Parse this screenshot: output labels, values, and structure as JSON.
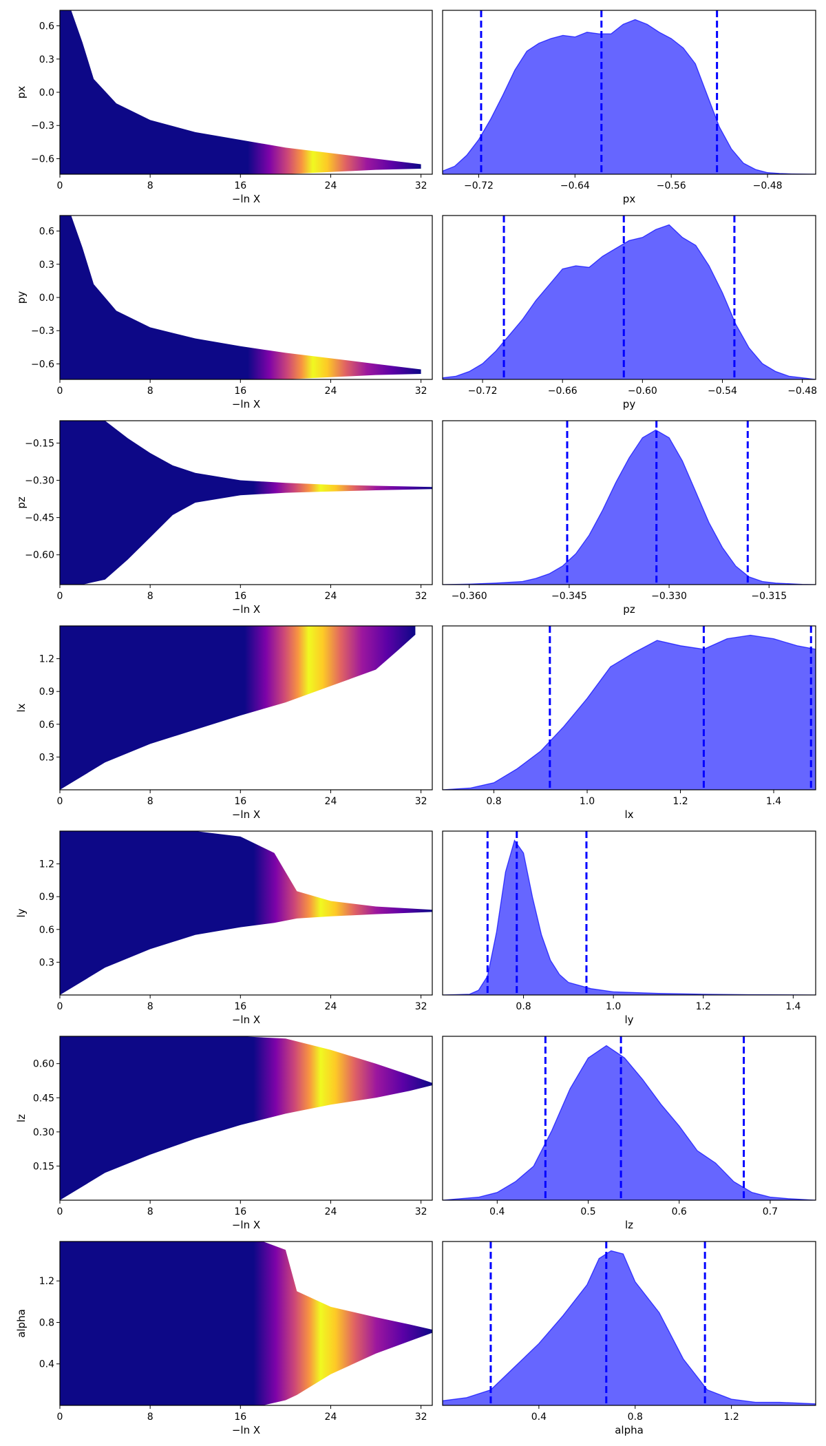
{
  "chart_data": [
    {
      "type": "scatter",
      "param": "px",
      "xlabel": "−ln X",
      "ylabel": "px",
      "xlim": [
        0,
        33
      ],
      "xticks": [
        0,
        8,
        16,
        24,
        32
      ],
      "ylim": [
        -0.74,
        0.74
      ],
      "yticks": [
        0.6,
        0.3,
        0.0,
        -0.3,
        -0.6
      ],
      "ytick_labels": [
        "0.6",
        "0.3",
        "0.0",
        "−0.3",
        "−0.6"
      ],
      "envelope": [
        {
          "x": 0,
          "lo": -0.74,
          "hi": 0.74
        },
        {
          "x": 1,
          "lo": -0.74,
          "hi": 0.74
        },
        {
          "x": 2,
          "lo": -0.74,
          "hi": 0.45
        },
        {
          "x": 3,
          "lo": -0.74,
          "hi": 0.12
        },
        {
          "x": 5,
          "lo": -0.74,
          "hi": -0.1
        },
        {
          "x": 8,
          "lo": -0.74,
          "hi": -0.25
        },
        {
          "x": 12,
          "lo": -0.74,
          "hi": -0.36
        },
        {
          "x": 16,
          "lo": -0.74,
          "hi": -0.43
        },
        {
          "x": 20,
          "lo": -0.74,
          "hi": -0.5
        },
        {
          "x": 24,
          "lo": -0.72,
          "hi": -0.55
        },
        {
          "x": 28,
          "lo": -0.7,
          "hi": -0.6
        },
        {
          "x": 32,
          "lo": -0.69,
          "hi": -0.65
        }
      ]
    },
    {
      "type": "area",
      "param": "px",
      "xlabel": "px",
      "xlim": [
        -0.75,
        -0.44
      ],
      "xticks": [
        -0.72,
        -0.64,
        -0.56,
        -0.48
      ],
      "xtick_labels": [
        "−0.72",
        "−0.64",
        "−0.56",
        "−0.48"
      ],
      "quantiles": [
        -0.718,
        -0.618,
        -0.522
      ],
      "x": [
        -0.75,
        -0.74,
        -0.73,
        -0.72,
        -0.71,
        -0.7,
        -0.69,
        -0.68,
        -0.67,
        -0.66,
        -0.65,
        -0.64,
        -0.63,
        -0.62,
        -0.61,
        -0.6,
        -0.59,
        -0.58,
        -0.57,
        -0.56,
        -0.55,
        -0.54,
        -0.53,
        -0.52,
        -0.51,
        -0.5,
        -0.49,
        -0.48,
        -0.47,
        -0.46,
        -0.44
      ],
      "density": [
        0.02,
        0.05,
        0.12,
        0.22,
        0.35,
        0.5,
        0.66,
        0.78,
        0.83,
        0.86,
        0.88,
        0.87,
        0.9,
        0.89,
        0.89,
        0.95,
        0.98,
        0.95,
        0.9,
        0.86,
        0.8,
        0.7,
        0.5,
        0.3,
        0.16,
        0.07,
        0.03,
        0.01,
        0.005,
        0.002,
        0.0
      ]
    },
    {
      "type": "scatter",
      "param": "py",
      "xlabel": "−ln X",
      "ylabel": "py",
      "xlim": [
        0,
        33
      ],
      "xticks": [
        0,
        8,
        16,
        24,
        32
      ],
      "ylim": [
        -0.74,
        0.74
      ],
      "yticks": [
        0.6,
        0.3,
        0.0,
        -0.3,
        -0.6
      ],
      "ytick_labels": [
        "0.6",
        "0.3",
        "0.0",
        "−0.3",
        "−0.6"
      ],
      "envelope": [
        {
          "x": 0,
          "lo": -0.74,
          "hi": 0.74
        },
        {
          "x": 1,
          "lo": -0.74,
          "hi": 0.74
        },
        {
          "x": 2,
          "lo": -0.74,
          "hi": 0.45
        },
        {
          "x": 3,
          "lo": -0.74,
          "hi": 0.12
        },
        {
          "x": 5,
          "lo": -0.74,
          "hi": -0.12
        },
        {
          "x": 8,
          "lo": -0.74,
          "hi": -0.27
        },
        {
          "x": 12,
          "lo": -0.74,
          "hi": -0.37
        },
        {
          "x": 16,
          "lo": -0.74,
          "hi": -0.44
        },
        {
          "x": 20,
          "lo": -0.74,
          "hi": -0.5
        },
        {
          "x": 24,
          "lo": -0.72,
          "hi": -0.55
        },
        {
          "x": 28,
          "lo": -0.7,
          "hi": -0.6
        },
        {
          "x": 32,
          "lo": -0.69,
          "hi": -0.65
        }
      ]
    },
    {
      "type": "area",
      "param": "py",
      "xlabel": "py",
      "xlim": [
        -0.75,
        -0.47
      ],
      "xticks": [
        -0.72,
        -0.66,
        -0.6,
        -0.54,
        -0.48
      ],
      "xtick_labels": [
        "−0.72",
        "−0.66",
        "−0.60",
        "−0.54",
        "−0.48"
      ],
      "quantiles": [
        -0.704,
        -0.614,
        -0.531
      ],
      "x": [
        -0.75,
        -0.74,
        -0.73,
        -0.72,
        -0.71,
        -0.7,
        -0.69,
        -0.68,
        -0.67,
        -0.66,
        -0.65,
        -0.64,
        -0.63,
        -0.62,
        -0.61,
        -0.6,
        -0.59,
        -0.58,
        -0.57,
        -0.56,
        -0.55,
        -0.54,
        -0.53,
        -0.52,
        -0.51,
        -0.5,
        -0.49,
        -0.48,
        -0.47
      ],
      "density": [
        0.01,
        0.02,
        0.05,
        0.1,
        0.18,
        0.28,
        0.38,
        0.5,
        0.6,
        0.7,
        0.72,
        0.71,
        0.78,
        0.83,
        0.88,
        0.9,
        0.95,
        0.98,
        0.9,
        0.85,
        0.72,
        0.55,
        0.35,
        0.2,
        0.1,
        0.05,
        0.02,
        0.01,
        0.0
      ]
    },
    {
      "type": "scatter",
      "param": "pz",
      "xlabel": "−ln X",
      "ylabel": "pz",
      "xlim": [
        0,
        33
      ],
      "xticks": [
        0,
        8,
        16,
        24,
        32
      ],
      "ylim": [
        -0.72,
        -0.06
      ],
      "yticks": [
        -0.15,
        -0.3,
        -0.45,
        -0.6
      ],
      "ytick_labels": [
        "−0.15",
        "−0.30",
        "−0.45",
        "−0.60"
      ],
      "envelope": [
        {
          "x": 0,
          "lo": -0.72,
          "hi": -0.06
        },
        {
          "x": 2,
          "lo": -0.72,
          "hi": -0.06
        },
        {
          "x": 4,
          "lo": -0.7,
          "hi": -0.06
        },
        {
          "x": 6,
          "lo": -0.62,
          "hi": -0.13
        },
        {
          "x": 8,
          "lo": -0.53,
          "hi": -0.19
        },
        {
          "x": 10,
          "lo": -0.44,
          "hi": -0.24
        },
        {
          "x": 12,
          "lo": -0.39,
          "hi": -0.27
        },
        {
          "x": 16,
          "lo": -0.36,
          "hi": -0.3
        },
        {
          "x": 20,
          "lo": -0.35,
          "hi": -0.31
        },
        {
          "x": 24,
          "lo": -0.345,
          "hi": -0.318
        },
        {
          "x": 28,
          "lo": -0.34,
          "hi": -0.322
        },
        {
          "x": 33,
          "lo": -0.335,
          "hi": -0.327
        }
      ]
    },
    {
      "type": "area",
      "param": "pz",
      "xlabel": "pz",
      "xlim": [
        -0.364,
        -0.308
      ],
      "xticks": [
        -0.36,
        -0.345,
        -0.33,
        -0.315
      ],
      "xtick_labels": [
        "−0.360",
        "−0.345",
        "−0.330",
        "−0.315"
      ],
      "quantiles": [
        -0.3453,
        -0.3319,
        -0.3182
      ],
      "x": [
        -0.364,
        -0.36,
        -0.356,
        -0.352,
        -0.35,
        -0.348,
        -0.346,
        -0.344,
        -0.342,
        -0.34,
        -0.338,
        -0.336,
        -0.334,
        -0.332,
        -0.33,
        -0.328,
        -0.326,
        -0.324,
        -0.322,
        -0.32,
        -0.318,
        -0.316,
        -0.314,
        -0.31,
        -0.308
      ],
      "density": [
        0.0,
        0.003,
        0.01,
        0.02,
        0.04,
        0.07,
        0.12,
        0.2,
        0.32,
        0.48,
        0.66,
        0.82,
        0.95,
        1.0,
        0.95,
        0.8,
        0.6,
        0.4,
        0.24,
        0.12,
        0.05,
        0.02,
        0.01,
        0.002,
        0.0
      ]
    },
    {
      "type": "scatter",
      "param": "lx",
      "xlabel": "−ln X",
      "ylabel": "lx",
      "xlim": [
        0,
        33
      ],
      "xticks": [
        0,
        8,
        16,
        24,
        32
      ],
      "ylim": [
        0.0,
        1.5
      ],
      "yticks": [
        1.2,
        0.9,
        0.6,
        0.3
      ],
      "ytick_labels": [
        "1.2",
        "0.9",
        "0.6",
        "0.3"
      ],
      "envelope": [
        {
          "x": 0,
          "lo": 0.0,
          "hi": 1.5
        },
        {
          "x": 4,
          "lo": 0.25,
          "hi": 1.5
        },
        {
          "x": 8,
          "lo": 0.42,
          "hi": 1.5
        },
        {
          "x": 12,
          "lo": 0.55,
          "hi": 1.5
        },
        {
          "x": 16,
          "lo": 0.68,
          "hi": 1.5
        },
        {
          "x": 20,
          "lo": 0.8,
          "hi": 1.5
        },
        {
          "x": 24,
          "lo": 0.95,
          "hi": 1.5
        },
        {
          "x": 28,
          "lo": 1.1,
          "hi": 1.5
        },
        {
          "x": 30,
          "lo": 1.28,
          "hi": 1.5
        },
        {
          "x": 31.5,
          "lo": 1.42,
          "hi": 1.5
        }
      ]
    },
    {
      "type": "area",
      "param": "lx",
      "xlabel": "lx",
      "xlim": [
        0.69,
        1.49
      ],
      "xticks": [
        0.8,
        1.0,
        1.2,
        1.4
      ],
      "xtick_labels": [
        "0.8",
        "1.0",
        "1.2",
        "1.4"
      ],
      "quantiles": [
        0.92,
        1.25,
        1.48
      ],
      "x": [
        0.69,
        0.75,
        0.8,
        0.85,
        0.9,
        0.95,
        1.0,
        1.05,
        1.1,
        1.15,
        1.2,
        1.25,
        1.3,
        1.35,
        1.4,
        1.45,
        1.49
      ],
      "density": [
        0.0,
        0.01,
        0.04,
        0.12,
        0.22,
        0.36,
        0.52,
        0.7,
        0.78,
        0.85,
        0.82,
        0.8,
        0.86,
        0.88,
        0.86,
        0.82,
        0.8
      ]
    },
    {
      "type": "scatter",
      "param": "ly",
      "xlabel": "−ln X",
      "ylabel": "ly",
      "xlim": [
        0,
        33
      ],
      "xticks": [
        0,
        8,
        16,
        24,
        32
      ],
      "ylim": [
        0.0,
        1.5
      ],
      "yticks": [
        1.2,
        0.9,
        0.6,
        0.3
      ],
      "ytick_labels": [
        "1.2",
        "0.9",
        "0.6",
        "0.3"
      ],
      "envelope": [
        {
          "x": 0,
          "lo": 0.0,
          "hi": 1.5
        },
        {
          "x": 4,
          "lo": 0.25,
          "hi": 1.5
        },
        {
          "x": 8,
          "lo": 0.42,
          "hi": 1.5
        },
        {
          "x": 12,
          "lo": 0.55,
          "hi": 1.5
        },
        {
          "x": 16,
          "lo": 0.62,
          "hi": 1.45
        },
        {
          "x": 19,
          "lo": 0.66,
          "hi": 1.3
        },
        {
          "x": 21,
          "lo": 0.7,
          "hi": 0.95
        },
        {
          "x": 24,
          "lo": 0.72,
          "hi": 0.86
        },
        {
          "x": 28,
          "lo": 0.74,
          "hi": 0.81
        },
        {
          "x": 33,
          "lo": 0.76,
          "hi": 0.78
        }
      ]
    },
    {
      "type": "area",
      "param": "ly",
      "xlabel": "ly",
      "xlim": [
        0.62,
        1.45
      ],
      "xticks": [
        0.8,
        1.0,
        1.2,
        1.4
      ],
      "xtick_labels": [
        "0.8",
        "1.0",
        "1.2",
        "1.4"
      ],
      "quantiles": [
        0.72,
        0.785,
        0.94
      ],
      "x": [
        0.62,
        0.68,
        0.7,
        0.72,
        0.74,
        0.76,
        0.78,
        0.8,
        0.82,
        0.84,
        0.86,
        0.88,
        0.9,
        0.95,
        1.0,
        1.1,
        1.2,
        1.3,
        1.45
      ],
      "density": [
        0.0,
        0.005,
        0.03,
        0.12,
        0.4,
        0.78,
        0.98,
        0.9,
        0.62,
        0.38,
        0.22,
        0.13,
        0.08,
        0.04,
        0.02,
        0.01,
        0.005,
        0.002,
        0.0
      ]
    },
    {
      "type": "scatter",
      "param": "lz",
      "xlabel": "−ln X",
      "ylabel": "lz",
      "xlim": [
        0,
        33
      ],
      "xticks": [
        0,
        8,
        16,
        24,
        32
      ],
      "ylim": [
        0.0,
        0.72
      ],
      "yticks": [
        0.6,
        0.45,
        0.3,
        0.15
      ],
      "ytick_labels": [
        "0.60",
        "0.45",
        "0.30",
        "0.15"
      ],
      "envelope": [
        {
          "x": 0,
          "lo": 0.0,
          "hi": 0.72
        },
        {
          "x": 4,
          "lo": 0.12,
          "hi": 0.72
        },
        {
          "x": 8,
          "lo": 0.2,
          "hi": 0.72
        },
        {
          "x": 12,
          "lo": 0.27,
          "hi": 0.72
        },
        {
          "x": 16,
          "lo": 0.33,
          "hi": 0.72
        },
        {
          "x": 20,
          "lo": 0.38,
          "hi": 0.71
        },
        {
          "x": 24,
          "lo": 0.42,
          "hi": 0.66
        },
        {
          "x": 28,
          "lo": 0.45,
          "hi": 0.6
        },
        {
          "x": 31,
          "lo": 0.48,
          "hi": 0.55
        },
        {
          "x": 33,
          "lo": 0.505,
          "hi": 0.515
        }
      ]
    },
    {
      "type": "area",
      "param": "lz",
      "xlabel": "lz",
      "xlim": [
        0.34,
        0.75
      ],
      "xticks": [
        0.4,
        0.5,
        0.6,
        0.7
      ],
      "xtick_labels": [
        "0.4",
        "0.5",
        "0.6",
        "0.7"
      ],
      "quantiles": [
        0.453,
        0.536,
        0.671
      ],
      "x": [
        0.34,
        0.38,
        0.4,
        0.42,
        0.44,
        0.46,
        0.48,
        0.5,
        0.52,
        0.54,
        0.56,
        0.58,
        0.6,
        0.62,
        0.64,
        0.66,
        0.68,
        0.7,
        0.72,
        0.75
      ],
      "density": [
        0.0,
        0.02,
        0.05,
        0.12,
        0.22,
        0.45,
        0.72,
        0.92,
        1.0,
        0.92,
        0.78,
        0.62,
        0.48,
        0.32,
        0.24,
        0.12,
        0.05,
        0.02,
        0.01,
        0.0
      ]
    },
    {
      "type": "scatter",
      "param": "alpha",
      "xlabel": "−ln X",
      "ylabel": "alpha",
      "xlim": [
        0,
        33
      ],
      "xticks": [
        0,
        8,
        16,
        24,
        32
      ],
      "ylim": [
        0.0,
        1.58
      ],
      "yticks": [
        1.2,
        0.8,
        0.4
      ],
      "ytick_labels": [
        "1.2",
        "0.8",
        "0.4"
      ],
      "envelope": [
        {
          "x": 0,
          "lo": 0.0,
          "hi": 1.58
        },
        {
          "x": 18,
          "lo": 0.0,
          "hi": 1.58
        },
        {
          "x": 20,
          "lo": 0.05,
          "hi": 1.5
        },
        {
          "x": 21,
          "lo": 0.1,
          "hi": 1.1
        },
        {
          "x": 24,
          "lo": 0.3,
          "hi": 0.95
        },
        {
          "x": 28,
          "lo": 0.5,
          "hi": 0.85
        },
        {
          "x": 31,
          "lo": 0.62,
          "hi": 0.78
        },
        {
          "x": 33,
          "lo": 0.7,
          "hi": 0.73
        }
      ]
    },
    {
      "type": "area",
      "param": "alpha",
      "xlabel": "alpha",
      "xlim": [
        0.0,
        1.55
      ],
      "xticks": [
        0.4,
        0.8,
        1.2
      ],
      "xtick_labels": [
        "0.4",
        "0.8",
        "1.2"
      ],
      "quantiles": [
        0.2,
        0.68,
        1.09
      ],
      "x": [
        0.0,
        0.1,
        0.2,
        0.3,
        0.4,
        0.5,
        0.6,
        0.65,
        0.7,
        0.75,
        0.8,
        0.9,
        1.0,
        1.1,
        1.2,
        1.3,
        1.4,
        1.55
      ],
      "density": [
        0.03,
        0.05,
        0.1,
        0.25,
        0.4,
        0.58,
        0.78,
        0.95,
        1.0,
        0.98,
        0.8,
        0.6,
        0.3,
        0.1,
        0.04,
        0.02,
        0.02,
        0.01
      ]
    }
  ]
}
